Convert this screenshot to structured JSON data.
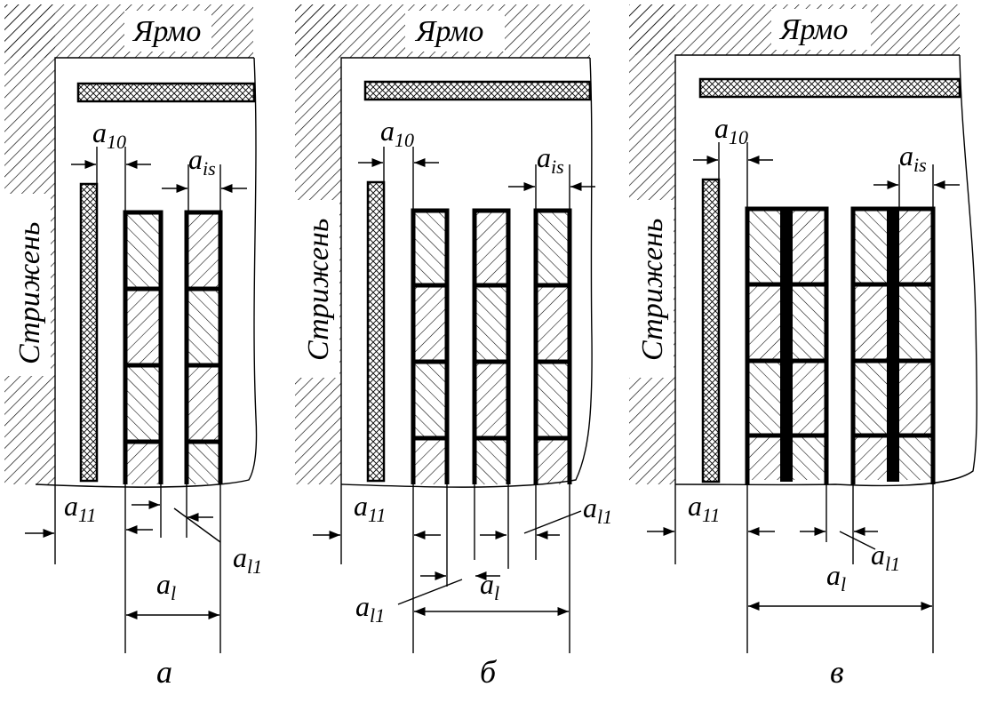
{
  "panels": [
    {
      "id": "a",
      "yoke_label": "Ярмо",
      "core_label": "Стрижень",
      "caption": "а",
      "dims": {
        "a10": {
          "sym": "a",
          "sub": "10"
        },
        "ais": {
          "sym": "a",
          "sub": "is"
        },
        "a11": {
          "sym": "a",
          "sub": "11"
        },
        "al1": {
          "sym": "a",
          "sub": "l1"
        },
        "al": {
          "sym": "a",
          "sub": "l"
        }
      }
    },
    {
      "id": "b",
      "yoke_label": "Ярмо",
      "core_label": "Стрижень",
      "caption": "б",
      "dims": {
        "a10": {
          "sym": "a",
          "sub": "10"
        },
        "ais": {
          "sym": "a",
          "sub": "is"
        },
        "a11": {
          "sym": "a",
          "sub": "11"
        },
        "al1_top": {
          "sym": "a",
          "sub": "l1"
        },
        "al1_bot": {
          "sym": "a",
          "sub": "l1"
        },
        "al": {
          "sym": "a",
          "sub": "l"
        }
      }
    },
    {
      "id": "v",
      "yoke_label": "Ярмо",
      "core_label": "Стрижень",
      "caption": "в",
      "dims": {
        "a10": {
          "sym": "a",
          "sub": "10"
        },
        "ais": {
          "sym": "a",
          "sub": "is"
        },
        "a11": {
          "sym": "a",
          "sub": "11"
        },
        "al1": {
          "sym": "a",
          "sub": "l1"
        },
        "al": {
          "sym": "a",
          "sub": "l"
        }
      }
    }
  ]
}
